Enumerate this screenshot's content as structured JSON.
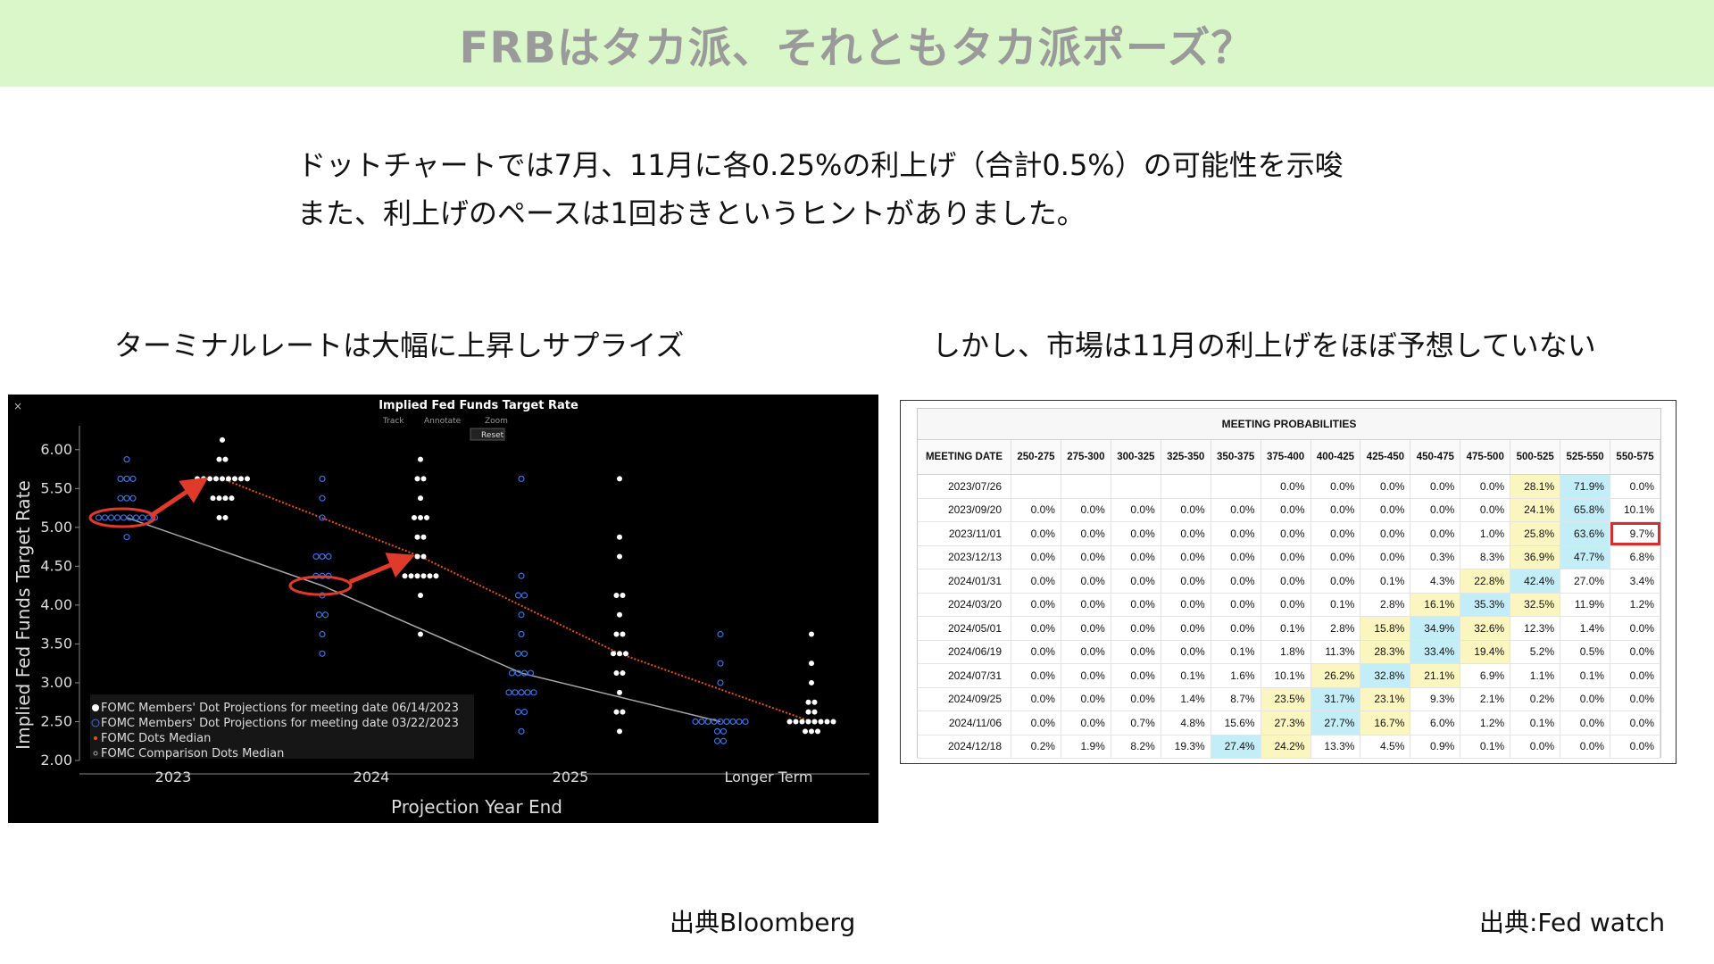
{
  "slide": {
    "title": "FRBはタカ派、それともタカ派ポーズ？",
    "intro_line1": "ドットチャートでは7月、11月に各0.25%の利上げ（合計0.5%）の可能性を示唆",
    "intro_line2": "また、利上げのペースは1回おきというヒントがありました。",
    "left_subtitle": "ターミナルレートは大幅に上昇しサプライズ",
    "right_subtitle": "しかし、市場は11月の利上げをほぼ予想していない",
    "left_source": "出典Bloomberg",
    "right_source": "出典:Fed watch"
  },
  "chart_toolbar": {
    "close": "×",
    "track": "Track",
    "annotate": "Annotate",
    "zoom": "Zoom",
    "reset": "Reset"
  },
  "chart_data": {
    "type": "scatter",
    "title": "Implied Fed Funds Target Rate",
    "xlabel": "Projection Year End",
    "ylabel": "Implied Fed Funds Target Rate",
    "categories": [
      "2023",
      "2024",
      "2025",
      "Longer Term"
    ],
    "ylim": [
      2.0,
      6.25
    ],
    "yticks": [
      "6.00",
      "5.50",
      "5.00",
      "4.50",
      "4.00",
      "3.50",
      "3.00",
      "2.50",
      "2.00"
    ],
    "legend_position": "bottom-left",
    "legend": [
      "FOMC Members' Dot Projections for meeting date 06/14/2023",
      "FOMC Members' Dot Projections for meeting date 03/22/2023",
      "FOMC Dots Median",
      "FOMC Comparison Dots Median"
    ],
    "colors": {
      "june_dots": "#ffffff",
      "march_dots": "#3b6fe0",
      "june_median": "#e0531e",
      "march_median": "#a8a8a8",
      "annotation": "#e03a2a"
    },
    "june_dots": [
      [
        6.125,
        1
      ],
      [
        5.875,
        2
      ],
      [
        5.625,
        9
      ],
      [
        5.375,
        4
      ],
      [
        5.125,
        2
      ],
      [
        5.875,
        1
      ],
      [
        5.625,
        2
      ],
      [
        5.375,
        1
      ],
      [
        5.125,
        3
      ],
      [
        4.875,
        2
      ],
      [
        4.625,
        2
      ],
      [
        4.375,
        6
      ],
      [
        4.125,
        1
      ],
      [
        3.625,
        1
      ],
      [
        5.625,
        1
      ],
      [
        4.875,
        1
      ],
      [
        4.625,
        1
      ],
      [
        4.125,
        2
      ],
      [
        3.875,
        1
      ],
      [
        3.625,
        2
      ],
      [
        3.375,
        3
      ],
      [
        3.125,
        2
      ],
      [
        2.875,
        1
      ],
      [
        2.625,
        2
      ],
      [
        2.375,
        1
      ],
      [
        3.625,
        1
      ],
      [
        3.25,
        1
      ],
      [
        3.0,
        1
      ],
      [
        2.75,
        2
      ],
      [
        2.625,
        2
      ],
      [
        2.5,
        8
      ],
      [
        2.375,
        3
      ]
    ],
    "march_dots": [
      [
        5.875,
        1
      ],
      [
        5.625,
        3
      ],
      [
        5.375,
        3
      ],
      [
        5.125,
        10
      ],
      [
        4.875,
        1
      ],
      [
        5.625,
        1
      ],
      [
        5.375,
        1
      ],
      [
        5.125,
        1
      ],
      [
        4.625,
        3
      ],
      [
        4.375,
        3
      ],
      [
        4.125,
        1
      ],
      [
        3.875,
        2
      ],
      [
        3.625,
        1
      ],
      [
        3.375,
        1
      ],
      [
        5.625,
        1
      ],
      [
        4.375,
        1
      ],
      [
        4.125,
        2
      ],
      [
        3.875,
        1
      ],
      [
        3.625,
        1
      ],
      [
        3.375,
        2
      ],
      [
        3.125,
        4
      ],
      [
        2.875,
        5
      ],
      [
        2.625,
        2
      ],
      [
        2.375,
        1
      ],
      [
        3.625,
        1
      ],
      [
        3.25,
        1
      ],
      [
        3.0,
        1
      ],
      [
        2.5,
        9
      ],
      [
        2.375,
        2
      ],
      [
        2.25,
        2
      ]
    ],
    "june_median": [
      5.625,
      4.625,
      3.375,
      2.5
    ],
    "march_median": [
      5.125,
      4.25,
      3.125,
      2.5
    ]
  },
  "table": {
    "caption": "MEETING PROBABILITIES",
    "headers": [
      "MEETING DATE",
      "250-275",
      "275-300",
      "300-325",
      "325-350",
      "350-375",
      "375-400",
      "400-425",
      "425-450",
      "450-475",
      "475-500",
      "500-525",
      "525-550",
      "550-575"
    ],
    "rows": [
      [
        "2023/07/26",
        "",
        "",
        "",
        "",
        "",
        "0.0%",
        "0.0%",
        "0.0%",
        "0.0%",
        "0.0%",
        "28.1%",
        "71.9%",
        "0.0%"
      ],
      [
        "2023/09/20",
        "0.0%",
        "0.0%",
        "0.0%",
        "0.0%",
        "0.0%",
        "0.0%",
        "0.0%",
        "0.0%",
        "0.0%",
        "0.0%",
        "24.1%",
        "65.8%",
        "10.1%"
      ],
      [
        "2023/11/01",
        "0.0%",
        "0.0%",
        "0.0%",
        "0.0%",
        "0.0%",
        "0.0%",
        "0.0%",
        "0.0%",
        "0.0%",
        "1.0%",
        "25.8%",
        "63.6%",
        "9.7%"
      ],
      [
        "2023/12/13",
        "0.0%",
        "0.0%",
        "0.0%",
        "0.0%",
        "0.0%",
        "0.0%",
        "0.0%",
        "0.0%",
        "0.3%",
        "8.3%",
        "36.9%",
        "47.7%",
        "6.8%"
      ],
      [
        "2024/01/31",
        "0.0%",
        "0.0%",
        "0.0%",
        "0.0%",
        "0.0%",
        "0.0%",
        "0.0%",
        "0.1%",
        "4.3%",
        "22.8%",
        "42.4%",
        "27.0%",
        "3.4%"
      ],
      [
        "2024/03/20",
        "0.0%",
        "0.0%",
        "0.0%",
        "0.0%",
        "0.0%",
        "0.0%",
        "0.1%",
        "2.8%",
        "16.1%",
        "35.3%",
        "32.5%",
        "11.9%",
        "1.2%"
      ],
      [
        "2024/05/01",
        "0.0%",
        "0.0%",
        "0.0%",
        "0.0%",
        "0.0%",
        "0.1%",
        "2.8%",
        "15.8%",
        "34.9%",
        "32.6%",
        "12.3%",
        "1.4%",
        "0.0%"
      ],
      [
        "2024/06/19",
        "0.0%",
        "0.0%",
        "0.0%",
        "0.0%",
        "0.1%",
        "1.8%",
        "11.3%",
        "28.3%",
        "33.4%",
        "19.4%",
        "5.2%",
        "0.5%",
        "0.0%"
      ],
      [
        "2024/07/31",
        "0.0%",
        "0.0%",
        "0.0%",
        "0.1%",
        "1.6%",
        "10.1%",
        "26.2%",
        "32.8%",
        "21.1%",
        "6.9%",
        "1.1%",
        "0.1%",
        "0.0%"
      ],
      [
        "2024/09/25",
        "0.0%",
        "0.0%",
        "0.0%",
        "1.4%",
        "8.7%",
        "23.5%",
        "31.7%",
        "23.1%",
        "9.3%",
        "2.1%",
        "0.2%",
        "0.0%",
        "0.0%"
      ],
      [
        "2024/11/06",
        "0.0%",
        "0.0%",
        "0.7%",
        "4.8%",
        "15.6%",
        "27.3%",
        "27.7%",
        "16.7%",
        "6.0%",
        "1.2%",
        "0.1%",
        "0.0%",
        "0.0%"
      ],
      [
        "2024/12/18",
        "0.2%",
        "1.9%",
        "8.2%",
        "19.3%",
        "27.4%",
        "24.2%",
        "13.3%",
        "4.5%",
        "0.9%",
        "0.1%",
        "0.0%",
        "0.0%",
        "0.0%"
      ]
    ],
    "highlights": {
      "blue": [
        [
          0,
          12
        ],
        [
          1,
          12
        ],
        [
          2,
          12
        ],
        [
          3,
          12
        ],
        [
          4,
          11
        ],
        [
          5,
          10
        ],
        [
          6,
          9
        ],
        [
          7,
          9
        ],
        [
          8,
          8
        ],
        [
          9,
          7
        ],
        [
          10,
          7
        ],
        [
          11,
          5
        ]
      ],
      "yellow": [
        [
          0,
          11
        ],
        [
          1,
          11
        ],
        [
          2,
          11
        ],
        [
          3,
          11
        ],
        [
          4,
          10
        ],
        [
          5,
          9
        ],
        [
          5,
          11
        ],
        [
          6,
          8
        ],
        [
          6,
          10
        ],
        [
          7,
          8
        ],
        [
          7,
          10
        ],
        [
          8,
          7
        ],
        [
          8,
          9
        ],
        [
          9,
          6
        ],
        [
          9,
          8
        ],
        [
          10,
          6
        ],
        [
          10,
          8
        ],
        [
          11,
          6
        ]
      ],
      "boxed": [
        2,
        13
      ],
      "colors": {
        "blue": "#c3eef8",
        "yellow": "#fbf6bf",
        "box": "#d32f2f"
      }
    }
  }
}
